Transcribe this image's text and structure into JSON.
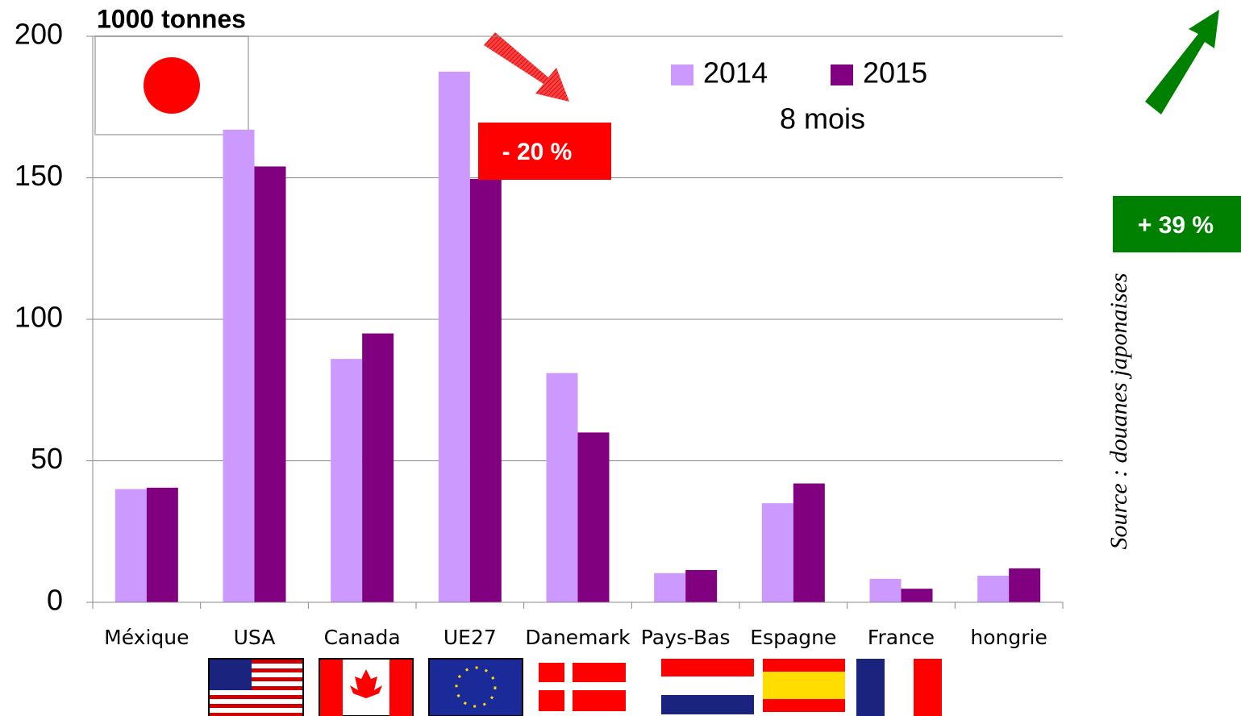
{
  "chart_data": {
    "type": "bar",
    "annotations": [
      "1000 tonnes",
      "8 mois",
      "- 20 %",
      "+ 39 %",
      "Source : douanes japonaises"
    ],
    "categories": [
      "Méxique",
      "USA",
      "Canada",
      "UE27",
      "Danemark",
      "Pays-Bas",
      "Espagne",
      "France",
      "hongrie"
    ],
    "series": [
      {
        "name": "2014",
        "color": "#cc99ff",
        "values": [
          40,
          167,
          86,
          187.5,
          81,
          10.3,
          35,
          8.3,
          9.4
        ]
      },
      {
        "name": "2015",
        "color": "#800080",
        "values": [
          40.5,
          154,
          95,
          149.6,
          60,
          11.4,
          42,
          4.8,
          12
        ]
      }
    ],
    "ylim": [
      0,
      200
    ],
    "yticks": [
      0,
      50,
      100,
      150,
      200
    ],
    "grid": true
  }
}
